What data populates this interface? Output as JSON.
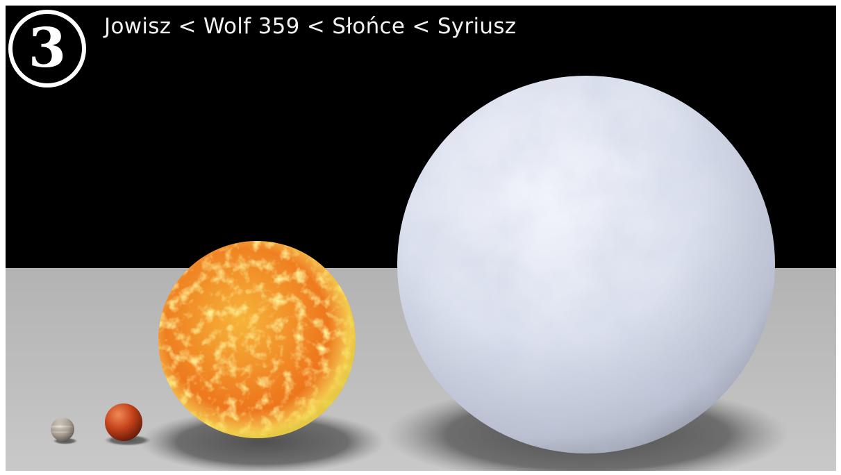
{
  "badge": {
    "number": "3"
  },
  "caption": {
    "text": "Jowisz < Wolf 359 < Słońce < Syriusz"
  },
  "colors": {
    "sky": "#000000",
    "floor": "#bdbdbd",
    "jupiter": "#bcb6ad",
    "wolf_359": "#c2421c",
    "sun": "#f0781a",
    "sirius": "#dfe4f2"
  }
}
